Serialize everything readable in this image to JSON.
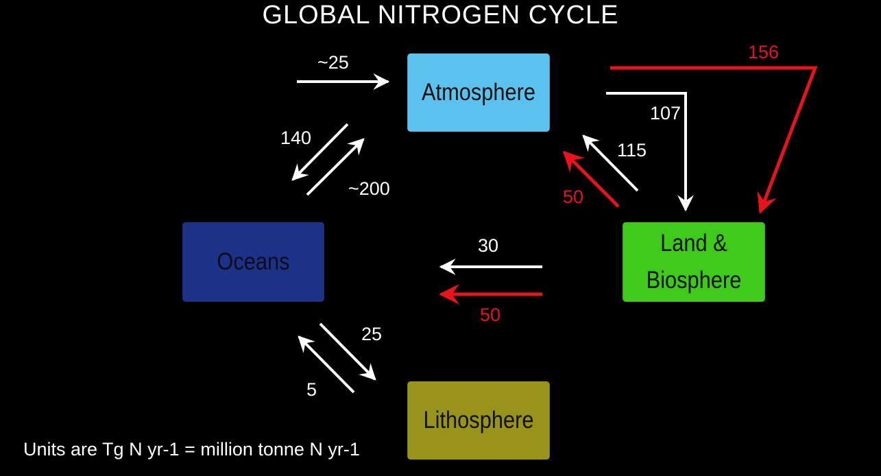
{
  "title": "GLOBAL NITROGEN CYCLE",
  "boxes": {
    "atmosphere": "Atmosphere",
    "oceans": "Oceans",
    "land_line1": "Land &",
    "land_line2": "Biosphere",
    "lithosphere": "Lithosphere"
  },
  "flows": {
    "into_atmosphere": "~25",
    "atm_to_ocean": "140",
    "ocean_to_atm": "~200",
    "atm_to_land": "107",
    "land_to_atm": "115",
    "land_to_atm_red": "50",
    "atm_to_land_red": "156",
    "land_to_ocean": "30",
    "land_to_ocean_red": "50",
    "ocean_to_litho": "25",
    "litho_to_ocean": "5"
  },
  "colors": {
    "atmosphere": "#5bc2f0",
    "oceans": "#1b3286",
    "land": "#3ec91b",
    "lithosphere": "#98931a",
    "natural_flow": "#ffffff",
    "human_flow": "#e8131b"
  },
  "units_note": "Units are Tg N yr-1 = million tonne N yr-1"
}
